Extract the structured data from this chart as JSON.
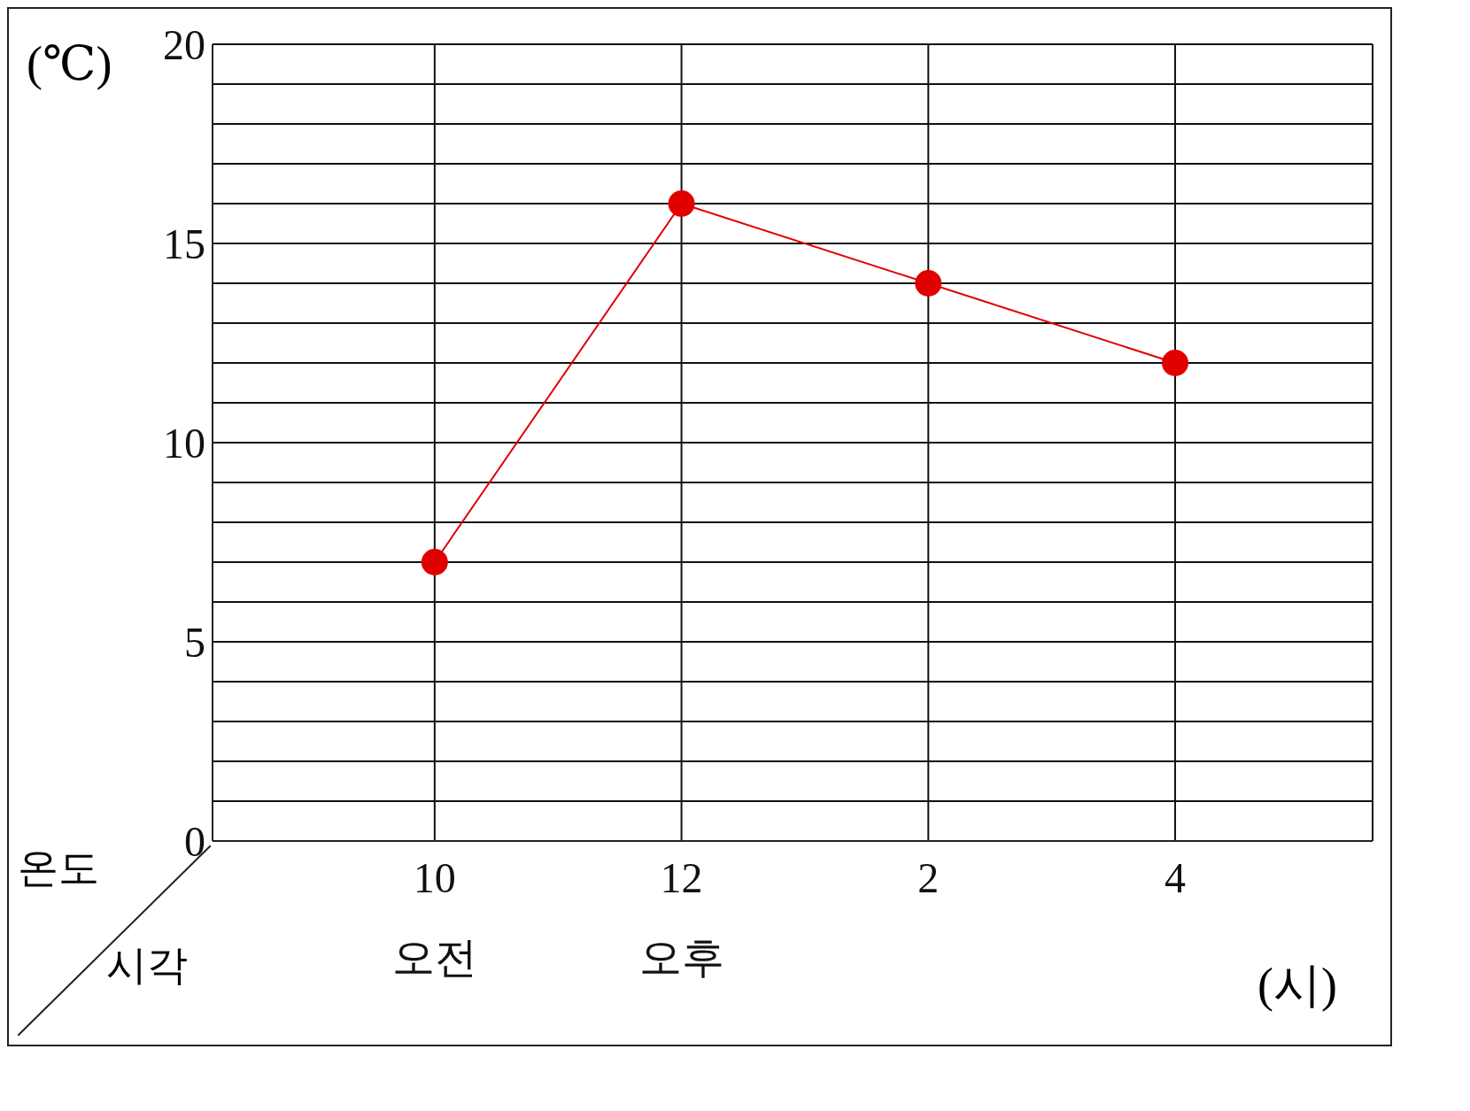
{
  "chart_data": {
    "type": "line",
    "xlabel": "(시)",
    "ylabel": "(℃)",
    "categories": [
      "10\n오전",
      "12\n오후",
      "2",
      "4"
    ],
    "series": [
      {
        "color": "#e00000",
        "values": [
          7,
          16,
          14,
          12
        ]
      }
    ],
    "ylim": [
      0,
      20
    ],
    "yticks": [
      0,
      {
        "value": 1,
        "label": null
      },
      {
        "value": 2,
        "label": null
      },
      {
        "value": 3,
        "label": null
      },
      {
        "value": 4,
        "label": null
      },
      5,
      {
        "value": 6,
        "label": null
      },
      {
        "value": 7,
        "label": null
      },
      {
        "value": 8,
        "label": null
      },
      {
        "value": 9,
        "label": null
      },
      10,
      {
        "value": 11,
        "label": null
      },
      {
        "value": 12,
        "label": null
      },
      {
        "value": 13,
        "label": null
      },
      {
        "value": 14,
        "label": null
      },
      15,
      {
        "value": 16,
        "label": null
      },
      {
        "value": 17,
        "label": null
      },
      {
        "value": 18,
        "label": null
      },
      {
        "value": 19,
        "label": null
      },
      20
    ],
    "annotations": [
      "온도",
      "시각"
    ],
    "grid": true,
    "marker": "circle",
    "line_style": "solid"
  }
}
